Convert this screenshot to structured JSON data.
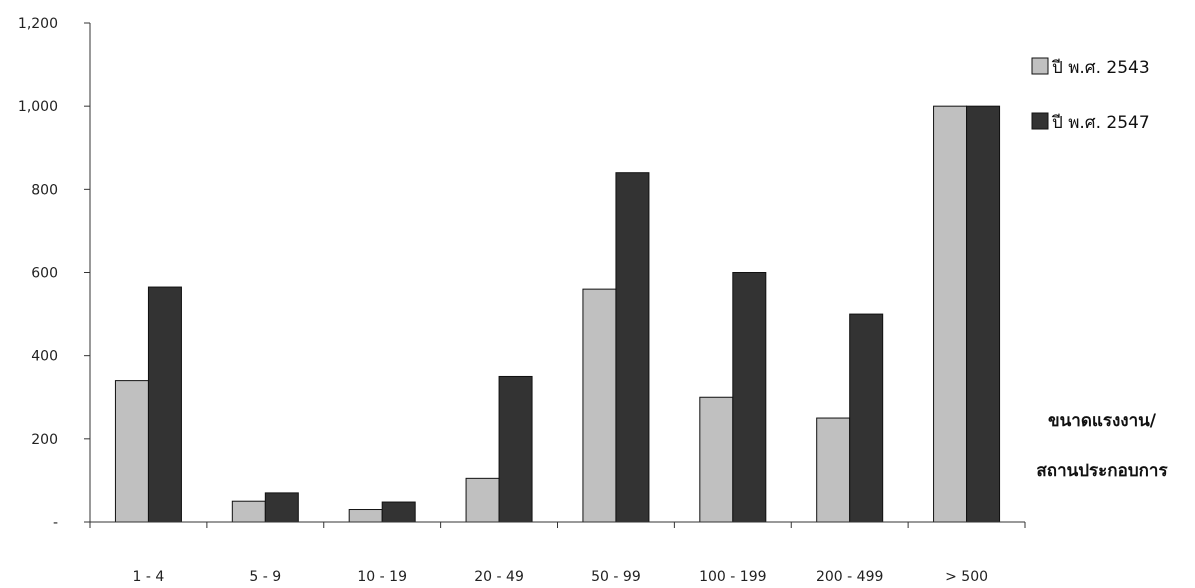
{
  "chart_data": {
    "type": "bar",
    "categories": [
      "1 - 4",
      "5 - 9",
      "10 - 19",
      "20 - 49",
      "50 - 99",
      "100 - 199",
      "200 - 499",
      "> 500"
    ],
    "series": [
      {
        "name": "ปี พ.ศ. 2543",
        "color": "#c0c0c0",
        "values": [
          340,
          50,
          30,
          105,
          560,
          300,
          250,
          1000
        ]
      },
      {
        "name": "ปี พ.ศ. 2547",
        "color": "#333333",
        "values": [
          565,
          70,
          48,
          350,
          840,
          600,
          500,
          1000
        ]
      }
    ],
    "title": "",
    "xlabel_lines": [
      "ขนาดแรงงาน/",
      "สถานประกอบการ"
    ],
    "ylabel": "",
    "ylim": [
      0,
      1200
    ],
    "yticks": [
      0,
      200,
      400,
      600,
      800,
      1000,
      1200
    ],
    "ytick_labels": [
      "-",
      "200",
      "400",
      "600",
      "800",
      "1,000",
      "1,200"
    ],
    "grid": false,
    "legend": "top-right"
  }
}
